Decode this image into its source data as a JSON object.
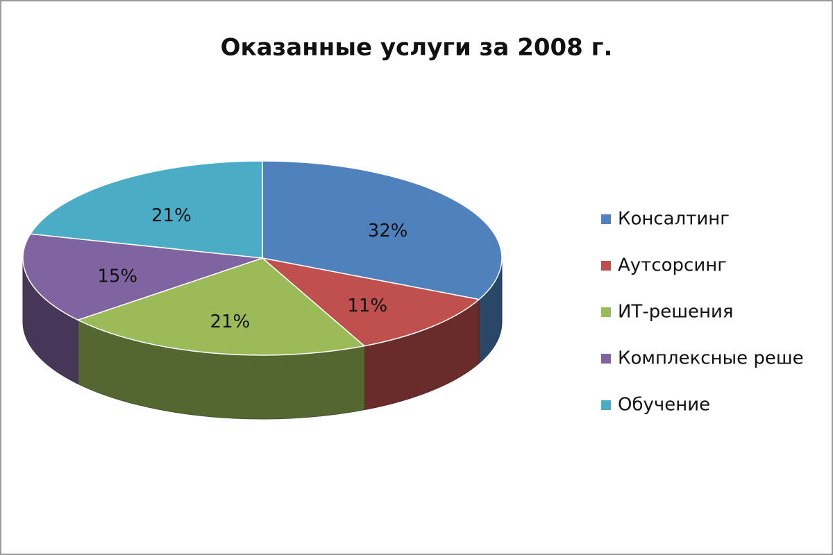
{
  "chart_data": {
    "type": "pie",
    "title": "Оказанные услуги за 2008 г.",
    "categories": [
      "Консалтинг",
      "Аутсорсинг",
      "ИТ-решения",
      "Комплексные реше",
      "Обучение"
    ],
    "values": [
      32,
      11,
      21,
      15,
      21
    ],
    "value_labels": [
      "32%",
      "11%",
      "21%",
      "15%",
      "21%"
    ],
    "colors": [
      "#4f81bd",
      "#c0504d",
      "#9bbb59",
      "#8064a2",
      "#4bacc6"
    ],
    "legend": "right"
  }
}
